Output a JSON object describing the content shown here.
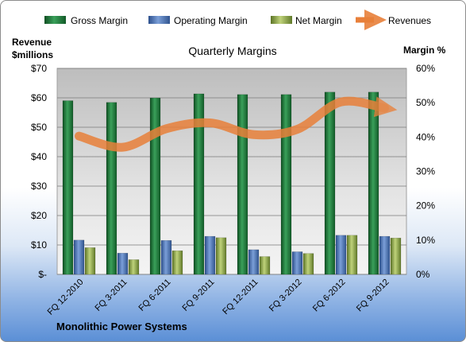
{
  "chart_data": {
    "type": "bar",
    "title": "Quarterly Margins",
    "company": "Monolithic Power Systems",
    "ylabel_left": [
      "Revenue",
      "$millions"
    ],
    "ylabel_right": "Margin %",
    "categories": [
      "FQ 12-2010",
      "FQ 3-2011",
      "FQ 6-2011",
      "FQ 9-2011",
      "FQ 12-2011",
      "FQ 3-2012",
      "FQ 6-2012",
      "FQ 9-2012"
    ],
    "left_ticks": [
      "$-",
      "$10",
      "$20",
      "$30",
      "$40",
      "$50",
      "$60",
      "$70"
    ],
    "right_ticks": [
      "0%",
      "10%",
      "20%",
      "30%",
      "40%",
      "50%",
      "60%"
    ],
    "ylim_left": [
      0,
      70
    ],
    "ylim_right": [
      0,
      60
    ],
    "legend_position": "top",
    "grid": true,
    "series": [
      {
        "name": "Gross Margin",
        "type": "bar",
        "axis": "right",
        "color": "#1f7a3c",
        "values": [
          50.6,
          50.1,
          51.4,
          52.6,
          52.4,
          52.4,
          53.1,
          53.1
        ]
      },
      {
        "name": "Operating Margin",
        "type": "bar",
        "axis": "right",
        "color": "#4a72b8",
        "values": [
          10.0,
          6.2,
          9.9,
          11.1,
          7.2,
          6.6,
          11.4,
          11.1
        ]
      },
      {
        "name": "Net Margin",
        "type": "bar",
        "axis": "right",
        "color": "#8ea84a",
        "values": [
          7.8,
          4.3,
          6.9,
          10.7,
          5.2,
          6.1,
          11.4,
          10.6
        ]
      },
      {
        "name": "Revenues",
        "type": "line",
        "axis": "left",
        "color": "#e8803a",
        "values": [
          47.0,
          43.2,
          49.5,
          51.5,
          47.5,
          49.3,
          58.6,
          56.5
        ]
      }
    ]
  }
}
